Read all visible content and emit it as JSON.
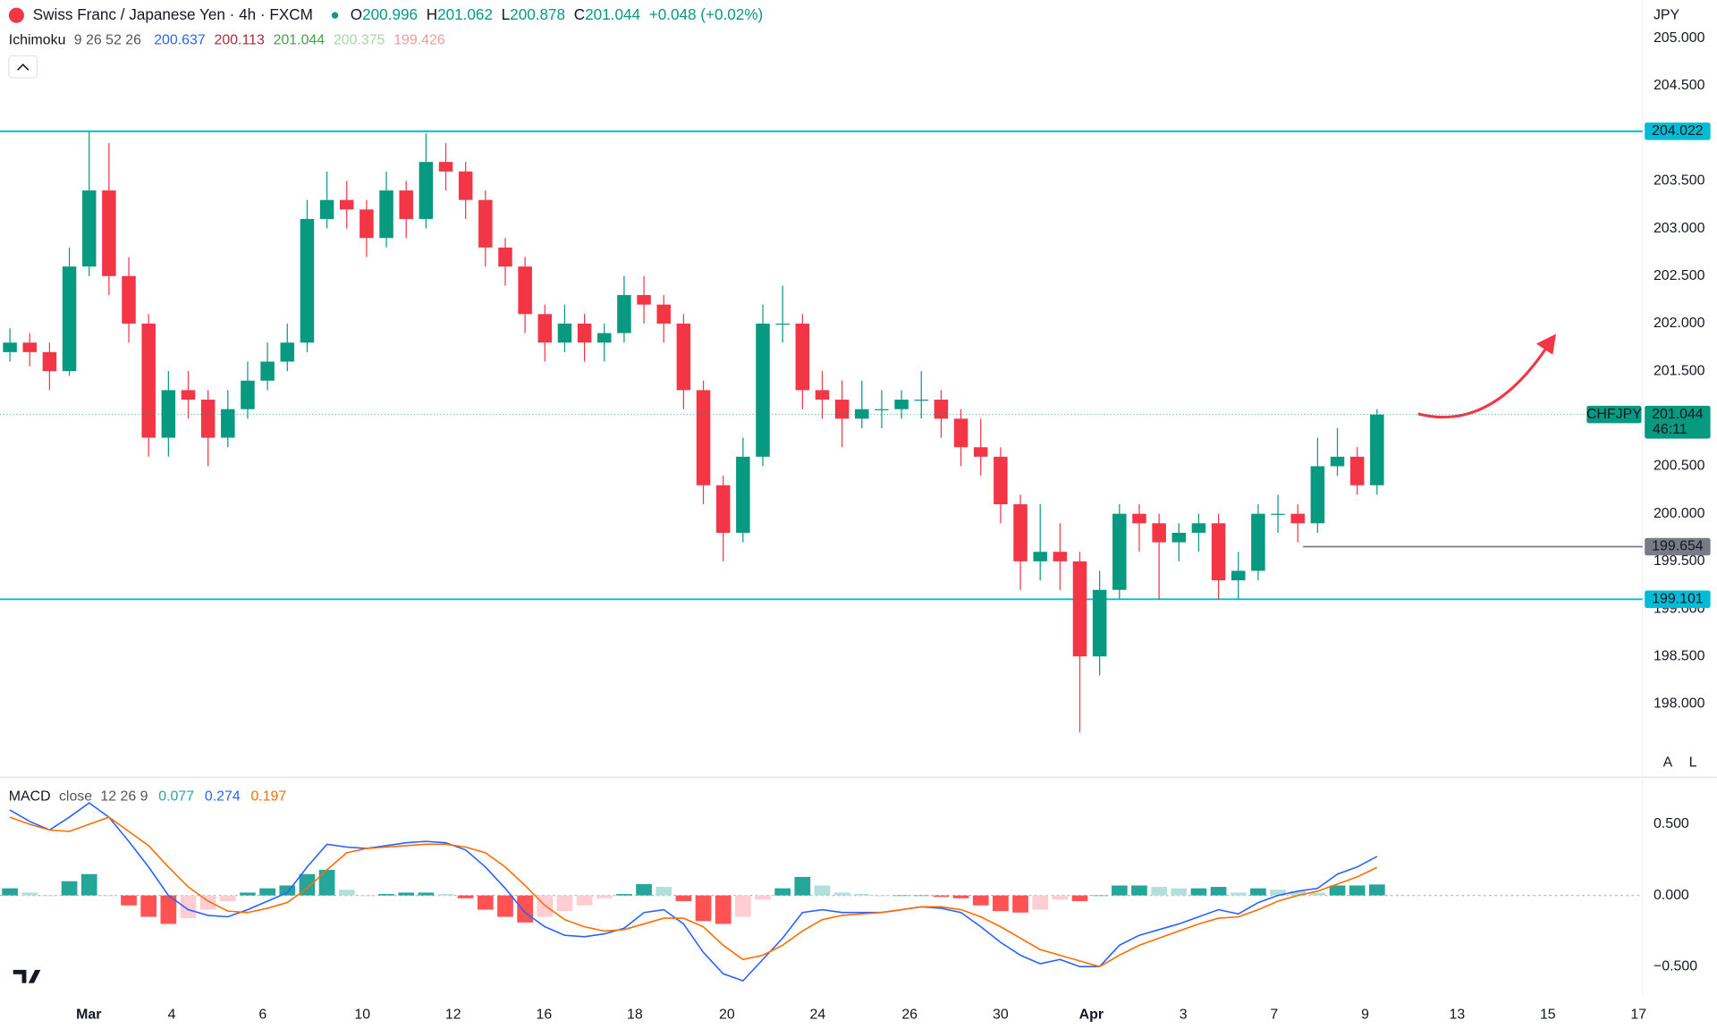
{
  "chart_data": [
    {
      "type": "candlestick",
      "title": "Swiss Franc / Japanese Yen · 4h · FXCM",
      "ohlc_labels": [
        "O",
        "H",
        "L",
        "C"
      ],
      "ohlc_values": [
        200.996,
        201.062,
        200.878,
        201.044
      ],
      "change": "+0.048 (+0.02%)",
      "indicator": {
        "name": "Ichimoku",
        "params": "9 26 52 26",
        "values": [
          200.637,
          200.113,
          201.044,
          200.375,
          199.426
        ],
        "colors": [
          "#2962ff",
          "#b22833",
          "#43a047",
          "#a5d6a7",
          "#ef9a9a"
        ]
      },
      "currency": "JPY",
      "symbol": "CHFJPY",
      "countdown": "46:11",
      "scale_buttons": [
        "A",
        "L"
      ],
      "up_color": "#089981",
      "down_color": "#f23645",
      "ylim": [
        197.287,
        205.403
      ],
      "yticks": [
        {
          "value": 198,
          "label": "198.000"
        },
        {
          "value": 198.5,
          "label": "198.500"
        },
        {
          "value": 199,
          "label": "199.000"
        },
        {
          "value": 199.5,
          "label": "199.500"
        },
        {
          "value": 200,
          "label": "200.000"
        },
        {
          "value": 200.5,
          "label": "200.500"
        },
        {
          "value": 201,
          "label": "201.000"
        },
        {
          "value": 201.5,
          "label": "201.500"
        },
        {
          "value": 202,
          "label": "202.000"
        },
        {
          "value": 202.5,
          "label": "202.500"
        },
        {
          "value": 203,
          "label": "203.000"
        },
        {
          "value": 203.5,
          "label": "203.500"
        },
        {
          "value": 204.5,
          "label": "204.500"
        },
        {
          "value": 205,
          "label": "205.000"
        }
      ],
      "xlim": [
        0,
        82.9
      ],
      "xticks": [
        {
          "value": 4.48,
          "label": "Mar"
        },
        {
          "value": 8.67,
          "label": "4"
        },
        {
          "value": 13.26,
          "label": "6"
        },
        {
          "value": 18.29,
          "label": "10"
        },
        {
          "value": 22.87,
          "label": "12"
        },
        {
          "value": 27.46,
          "label": "16"
        },
        {
          "value": 32.04,
          "label": "18"
        },
        {
          "value": 36.69,
          "label": "20"
        },
        {
          "value": 41.27,
          "label": "24"
        },
        {
          "value": 45.91,
          "label": "26"
        },
        {
          "value": 50.5,
          "label": "30"
        },
        {
          "value": 55.08,
          "label": "Apr"
        },
        {
          "value": 59.72,
          "label": "3"
        },
        {
          "value": 64.31,
          "label": "7"
        },
        {
          "value": 68.9,
          "label": "9"
        },
        {
          "value": 73.54,
          "label": "13"
        },
        {
          "value": 78.12,
          "label": "15"
        },
        {
          "value": 82.7,
          "label": "17"
        }
      ],
      "levels": [
        {
          "value": 204.022,
          "color": "#00bcd4"
        },
        {
          "value": 199.101,
          "color": "#00bcd4"
        },
        {
          "value": 199.654,
          "color": "#787b86"
        }
      ],
      "candles": [
        [
          201.7,
          201.95,
          201.6,
          201.8
        ],
        [
          201.8,
          201.9,
          201.55,
          201.7
        ],
        [
          201.7,
          201.8,
          201.3,
          201.5
        ],
        [
          201.5,
          202.8,
          201.45,
          202.6
        ],
        [
          202.6,
          204.022,
          202.5,
          203.4
        ],
        [
          203.4,
          203.9,
          202.3,
          202.5
        ],
        [
          202.5,
          202.7,
          201.8,
          202.0
        ],
        [
          202.0,
          202.1,
          200.6,
          200.8
        ],
        [
          200.8,
          201.5,
          200.6,
          201.3
        ],
        [
          201.3,
          201.5,
          201.0,
          201.2
        ],
        [
          201.2,
          201.3,
          200.5,
          200.8
        ],
        [
          200.8,
          201.3,
          200.7,
          201.1
        ],
        [
          201.1,
          201.6,
          201.0,
          201.4
        ],
        [
          201.4,
          201.8,
          201.3,
          201.6
        ],
        [
          201.6,
          202.0,
          201.5,
          201.8
        ],
        [
          201.8,
          203.3,
          201.7,
          203.1
        ],
        [
          203.1,
          203.6,
          203.0,
          203.3
        ],
        [
          203.3,
          203.5,
          203.0,
          203.2
        ],
        [
          203.2,
          203.3,
          202.7,
          202.9
        ],
        [
          202.9,
          203.6,
          202.8,
          203.4
        ],
        [
          203.4,
          203.5,
          202.9,
          203.1
        ],
        [
          203.1,
          204.0,
          203.0,
          203.7
        ],
        [
          203.7,
          203.9,
          203.4,
          203.6
        ],
        [
          203.6,
          203.7,
          203.1,
          203.3
        ],
        [
          203.3,
          203.4,
          202.6,
          202.8
        ],
        [
          202.8,
          202.9,
          202.4,
          202.6
        ],
        [
          202.6,
          202.7,
          201.9,
          202.1
        ],
        [
          202.1,
          202.2,
          201.6,
          201.8
        ],
        [
          201.8,
          202.2,
          201.7,
          202.0
        ],
        [
          202.0,
          202.1,
          201.6,
          201.8
        ],
        [
          201.8,
          202.0,
          201.6,
          201.9
        ],
        [
          201.9,
          202.5,
          201.8,
          202.3
        ],
        [
          202.3,
          202.5,
          202.0,
          202.2
        ],
        [
          202.2,
          202.3,
          201.8,
          202.0
        ],
        [
          202.0,
          202.1,
          201.1,
          201.3
        ],
        [
          201.3,
          201.4,
          200.1,
          200.3
        ],
        [
          200.3,
          200.4,
          199.5,
          199.8
        ],
        [
          199.8,
          200.8,
          199.7,
          200.6
        ],
        [
          200.6,
          202.2,
          200.5,
          202.0
        ],
        [
          202.0,
          202.4,
          201.8,
          202.0
        ],
        [
          202.0,
          202.1,
          201.1,
          201.3
        ],
        [
          201.3,
          201.5,
          201.0,
          201.2
        ],
        [
          201.2,
          201.4,
          200.7,
          201.0
        ],
        [
          201.0,
          201.4,
          200.9,
          201.1
        ],
        [
          201.1,
          201.3,
          200.9,
          201.1
        ],
        [
          201.1,
          201.3,
          201.0,
          201.2
        ],
        [
          201.2,
          201.5,
          201.0,
          201.2
        ],
        [
          201.2,
          201.3,
          200.8,
          201.0
        ],
        [
          201.0,
          201.1,
          200.5,
          200.7
        ],
        [
          200.7,
          201.0,
          200.4,
          200.6
        ],
        [
          200.6,
          200.7,
          199.9,
          200.1
        ],
        [
          200.1,
          200.2,
          199.2,
          199.5
        ],
        [
          199.5,
          200.1,
          199.3,
          199.6
        ],
        [
          199.6,
          199.9,
          199.2,
          199.5
        ],
        [
          199.5,
          199.6,
          197.7,
          198.5
        ],
        [
          198.5,
          199.4,
          198.3,
          199.2
        ],
        [
          199.2,
          200.1,
          199.1,
          200.0
        ],
        [
          200.0,
          200.1,
          199.6,
          199.9
        ],
        [
          199.9,
          200.0,
          199.1,
          199.7
        ],
        [
          199.7,
          199.9,
          199.5,
          199.8
        ],
        [
          199.8,
          200.0,
          199.6,
          199.9
        ],
        [
          199.9,
          200.0,
          199.1,
          199.3
        ],
        [
          199.3,
          199.6,
          199.1,
          199.4
        ],
        [
          199.4,
          200.1,
          199.3,
          200.0
        ],
        [
          200.0,
          200.2,
          199.8,
          200.0
        ],
        [
          200.0,
          200.1,
          199.7,
          199.9
        ],
        [
          199.9,
          200.8,
          199.8,
          200.5
        ],
        [
          200.5,
          200.9,
          200.4,
          200.6
        ],
        [
          200.6,
          200.7,
          200.2,
          200.3
        ],
        [
          200.3,
          201.1,
          200.2,
          201.044
        ]
      ]
    },
    {
      "type": "macd",
      "title": "MACD",
      "source": "close",
      "params": "12 26 9",
      "ylim": [
        -0.669,
        0.815
      ],
      "yticks": [
        {
          "value": 0.5,
          "label": "0.500"
        },
        {
          "value": 0,
          "label": "0.000"
        },
        {
          "value": -0.5,
          "label": "−0.500"
        }
      ],
      "histogram": {
        "name": "Histogram",
        "legend_value": 0.077,
        "colors": [
          "#26a69a",
          "#b2dfdb",
          "#ff5252",
          "#ffcdd2"
        ],
        "values": [
          0.05,
          0.02,
          0,
          0.1,
          0.15,
          0,
          -0.07,
          -0.15,
          -0.2,
          -0.16,
          -0.1,
          -0.04,
          0.02,
          0.05,
          0.07,
          0.15,
          0.18,
          0.04,
          0,
          0.01,
          0.02,
          0.02,
          0.01,
          -0.02,
          -0.1,
          -0.15,
          -0.19,
          -0.15,
          -0.11,
          -0.07,
          -0.02,
          0.01,
          0.08,
          0.06,
          -0.04,
          -0.18,
          -0.2,
          -0.15,
          -0.03,
          0.05,
          0.13,
          0.07,
          0.02,
          0.01,
          0,
          0,
          0,
          -0.01,
          -0.02,
          -0.07,
          -0.11,
          -0.12,
          -0.1,
          -0.03,
          -0.04,
          0,
          0.07,
          0.07,
          0.06,
          0.05,
          0.05,
          0.06,
          0.02,
          0.05,
          0.04,
          0.03,
          0.02,
          0.07,
          0.07,
          0.077
        ]
      },
      "series": [
        {
          "name": "MACD",
          "color": "#2962ff",
          "legend_value": 0.274,
          "values": [
            0.6,
            0.52,
            0.46,
            0.55,
            0.65,
            0.55,
            0.38,
            0.2,
            0,
            -0.1,
            -0.14,
            -0.15,
            -0.1,
            -0.04,
            0.02,
            0.2,
            0.36,
            0.34,
            0.33,
            0.35,
            0.37,
            0.38,
            0.37,
            0.32,
            0.2,
            0.05,
            -0.12,
            -0.22,
            -0.28,
            -0.29,
            -0.27,
            -0.23,
            -0.12,
            -0.1,
            -0.2,
            -0.4,
            -0.55,
            -0.6,
            -0.45,
            -0.3,
            -0.12,
            -0.1,
            -0.12,
            -0.12,
            -0.12,
            -0.1,
            -0.08,
            -0.09,
            -0.12,
            -0.22,
            -0.33,
            -0.42,
            -0.48,
            -0.45,
            -0.5,
            -0.5,
            -0.35,
            -0.28,
            -0.24,
            -0.2,
            -0.15,
            -0.1,
            -0.13,
            -0.05,
            0,
            0.03,
            0.05,
            0.15,
            0.2,
            0.274
          ]
        },
        {
          "name": "Signal",
          "color": "#ff6d00",
          "legend_value": 0.197,
          "values": [
            0.55,
            0.5,
            0.46,
            0.45,
            0.5,
            0.55,
            0.45,
            0.35,
            0.2,
            0.06,
            -0.04,
            -0.11,
            -0.12,
            -0.09,
            -0.05,
            0.05,
            0.18,
            0.3,
            0.33,
            0.34,
            0.35,
            0.36,
            0.36,
            0.34,
            0.3,
            0.2,
            0.07,
            -0.07,
            -0.17,
            -0.22,
            -0.25,
            -0.24,
            -0.2,
            -0.16,
            -0.16,
            -0.22,
            -0.35,
            -0.45,
            -0.42,
            -0.35,
            -0.25,
            -0.17,
            -0.14,
            -0.13,
            -0.12,
            -0.1,
            -0.08,
            -0.08,
            -0.1,
            -0.15,
            -0.22,
            -0.3,
            -0.38,
            -0.42,
            -0.46,
            -0.5,
            -0.42,
            -0.35,
            -0.3,
            -0.25,
            -0.2,
            -0.16,
            -0.15,
            -0.1,
            -0.04,
            0,
            0.03,
            0.08,
            0.13,
            0.197
          ]
        }
      ]
    }
  ]
}
